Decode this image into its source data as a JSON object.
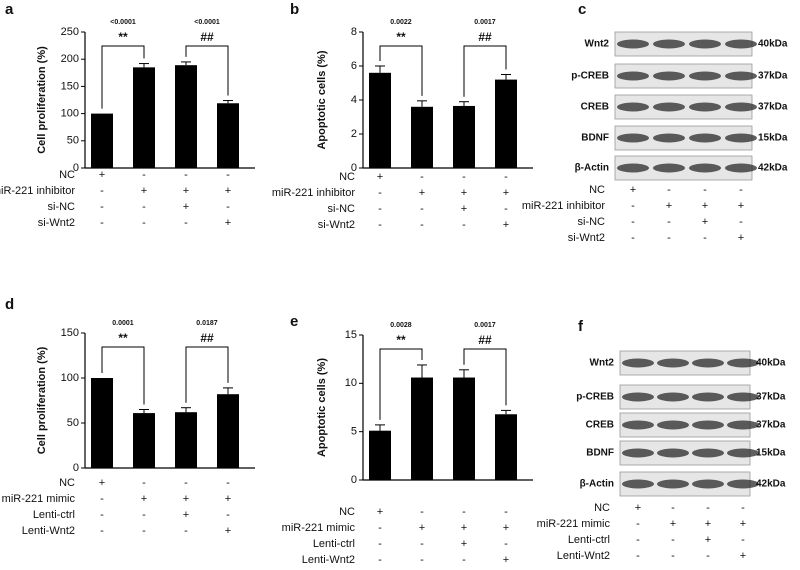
{
  "chart_data": [
    {
      "type": "bar",
      "panel": "a",
      "ylabel": "Cell proliferation (%)",
      "ylim": [
        0,
        250
      ],
      "yticks": [
        0,
        50,
        100,
        150,
        200,
        250
      ],
      "color": "#000000",
      "values": [
        100,
        185,
        189,
        119
      ],
      "errors": [
        0,
        7,
        6,
        5
      ],
      "annotations": [
        {
          "p": "<0.0001",
          "mark": "**"
        },
        {
          "p": "<0.0001",
          "mark": "##"
        }
      ],
      "conditions": [
        {
          "name": "NC",
          "signs": [
            "+",
            "-",
            "-",
            "-"
          ]
        },
        {
          "name": "miR-221 inhibitor",
          "signs": [
            "-",
            "+",
            "+",
            "+"
          ]
        },
        {
          "name": "si-NC",
          "signs": [
            "-",
            "-",
            "+",
            "-"
          ]
        },
        {
          "name": "si-Wnt2",
          "signs": [
            "-",
            "-",
            "-",
            "+"
          ]
        }
      ]
    },
    {
      "type": "bar",
      "panel": "b",
      "ylabel": "Apoptotic cells (%)",
      "ylim": [
        0,
        8
      ],
      "yticks": [
        0,
        2,
        4,
        6,
        8
      ],
      "color": "#000000",
      "values": [
        5.6,
        3.6,
        3.65,
        5.2
      ],
      "errors": [
        0.4,
        0.35,
        0.25,
        0.3
      ],
      "annotations": [
        {
          "p": "0.0022",
          "mark": "**"
        },
        {
          "p": "0.0017",
          "mark": "##"
        }
      ],
      "conditions": [
        {
          "name": "NC",
          "signs": [
            "+",
            "-",
            "-",
            "-"
          ]
        },
        {
          "name": "miR-221 inhibitor",
          "signs": [
            "-",
            "+",
            "+",
            "+"
          ]
        },
        {
          "name": "si-NC",
          "signs": [
            "-",
            "-",
            "+",
            "-"
          ]
        },
        {
          "name": "si-Wnt2",
          "signs": [
            "-",
            "-",
            "-",
            "+"
          ]
        }
      ]
    },
    {
      "type": "bar",
      "panel": "d",
      "ylabel": "Cell proliferation (%)",
      "ylim": [
        0,
        150
      ],
      "yticks": [
        0,
        50,
        100,
        150
      ],
      "color": "#000000",
      "values": [
        100,
        61,
        62,
        82
      ],
      "errors": [
        0,
        4,
        5,
        7
      ],
      "annotations": [
        {
          "p": "0.0001",
          "mark": "**"
        },
        {
          "p": "0.0187",
          "mark": "##"
        }
      ],
      "conditions": [
        {
          "name": "NC",
          "signs": [
            "+",
            "-",
            "-",
            "-"
          ]
        },
        {
          "name": "miR-221 mimic",
          "signs": [
            "-",
            "+",
            "+",
            "+"
          ]
        },
        {
          "name": "Lenti-ctrl",
          "signs": [
            "-",
            "-",
            "+",
            "-"
          ]
        },
        {
          "name": "Lenti-Wnt2",
          "signs": [
            "-",
            "-",
            "-",
            "+"
          ]
        }
      ]
    },
    {
      "type": "bar",
      "panel": "e",
      "ylabel": "Apoptotic cells (%)",
      "ylim": [
        0,
        15
      ],
      "yticks": [
        0,
        5,
        10,
        15
      ],
      "color": "#000000",
      "values": [
        5.1,
        10.6,
        10.6,
        6.8
      ],
      "errors": [
        0.6,
        1.3,
        0.8,
        0.4
      ],
      "annotations": [
        {
          "p": "0.0028",
          "mark": "**"
        },
        {
          "p": "0.0017",
          "mark": "##"
        }
      ],
      "conditions": [
        {
          "name": "NC",
          "signs": [
            "+",
            "-",
            "-",
            "-"
          ]
        },
        {
          "name": "miR-221 mimic",
          "signs": [
            "-",
            "+",
            "+",
            "+"
          ]
        },
        {
          "name": "Lenti-ctrl",
          "signs": [
            "-",
            "-",
            "+",
            "-"
          ]
        },
        {
          "name": "Lenti-Wnt2",
          "signs": [
            "-",
            "-",
            "-",
            "+"
          ]
        }
      ]
    }
  ],
  "blots": [
    {
      "panel": "c",
      "proteins": [
        {
          "name": "Wnt2",
          "size": "40kDa"
        },
        {
          "name": "p-CREB",
          "size": "37kDa"
        },
        {
          "name": "CREB",
          "size": "37kDa"
        },
        {
          "name": "BDNF",
          "size": "15kDa"
        },
        {
          "name": "β-Actin",
          "size": "42kDa"
        }
      ],
      "conditions": [
        {
          "name": "NC",
          "signs": [
            "+",
            "-",
            "-",
            "-"
          ]
        },
        {
          "name": "miR-221 inhibitor",
          "signs": [
            "-",
            "+",
            "+",
            "+"
          ]
        },
        {
          "name": "si-NC",
          "signs": [
            "-",
            "-",
            "+",
            "-"
          ]
        },
        {
          "name": "si-Wnt2",
          "signs": [
            "-",
            "-",
            "-",
            "+"
          ]
        }
      ]
    },
    {
      "panel": "f",
      "proteins": [
        {
          "name": "Wnt2",
          "size": "40kDa"
        },
        {
          "name": "p-CREB",
          "size": "37kDa"
        },
        {
          "name": "CREB",
          "size": "37kDa"
        },
        {
          "name": "BDNF",
          "size": "15kDa"
        },
        {
          "name": "β-Actin",
          "size": "42kDa"
        }
      ],
      "conditions": [
        {
          "name": "NC",
          "signs": [
            "+",
            "-",
            "-",
            "-"
          ]
        },
        {
          "name": "miR-221 mimic",
          "signs": [
            "-",
            "+",
            "+",
            "+"
          ]
        },
        {
          "name": "Lenti-ctrl",
          "signs": [
            "-",
            "-",
            "+",
            "-"
          ]
        },
        {
          "name": "Lenti-Wnt2",
          "signs": [
            "-",
            "-",
            "-",
            "+"
          ]
        }
      ]
    }
  ]
}
